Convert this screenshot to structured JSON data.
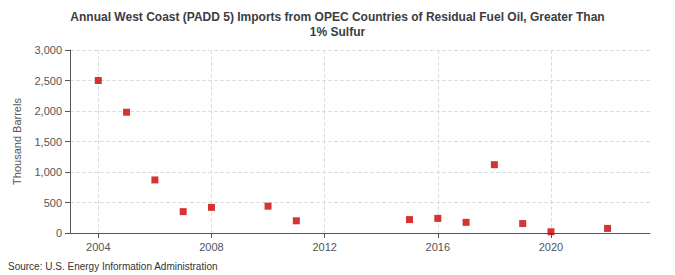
{
  "chart_data": {
    "type": "scatter",
    "title": "Annual West Coast (PADD 5) Imports from OPEC Countries of Residual Fuel Oil, Greater Than\n1% Sulfur",
    "ylabel": "Thousand Barrels",
    "source": "Source: U.S. Energy Information Administration",
    "x": [
      2004,
      2005,
      2006,
      2007,
      2008,
      2010,
      2011,
      2015,
      2016,
      2017,
      2018,
      2019,
      2020,
      2022
    ],
    "values": [
      2500,
      1980,
      870,
      350,
      420,
      440,
      200,
      220,
      240,
      175,
      1120,
      155,
      20,
      75
    ],
    "color": "#cc0000",
    "marker": "square",
    "xlim": [
      2003.0,
      2023.5
    ],
    "ylim": [
      0,
      3000
    ],
    "xticks": [
      2004,
      2008,
      2012,
      2016,
      2020
    ],
    "yticks": [
      0,
      500,
      {
        "value": 1000,
        "label": "1,000"
      },
      {
        "value": 1500,
        "label": "1,500"
      },
      {
        "value": 2000,
        "label": "2,000"
      },
      {
        "value": 2500,
        "label": "2,500"
      },
      {
        "value": 3000,
        "label": "3,000"
      }
    ],
    "grid": true
  }
}
